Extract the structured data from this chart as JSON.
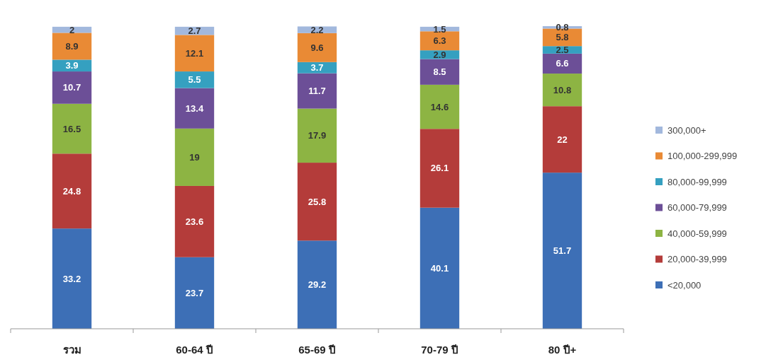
{
  "chart_data": {
    "type": "bar",
    "stacked": true,
    "data_labels": true,
    "legend": "right",
    "categories": [
      "รวม",
      "60-64 ปี",
      "65-69 ปี",
      "70-79 ปี",
      "80 ปี+"
    ],
    "series": [
      {
        "name": "<20,000",
        "color": "#3d6fb6",
        "values": [
          33.2,
          23.7,
          29.2,
          40.1,
          51.7
        ]
      },
      {
        "name": "20,000-39,999",
        "color": "#b43c3a",
        "values": [
          24.8,
          23.6,
          25.8,
          26.1,
          22
        ]
      },
      {
        "name": "40,000-59,999",
        "color": "#8db443",
        "values": [
          16.5,
          19,
          17.9,
          14.6,
          10.8
        ]
      },
      {
        "name": "60,000-79,999",
        "color": "#6c4f97",
        "values": [
          10.7,
          13.4,
          11.7,
          8.5,
          6.6
        ]
      },
      {
        "name": "80,000-99,999",
        "color": "#35a0c0",
        "values": [
          3.9,
          5.5,
          3.7,
          2.9,
          2.5
        ]
      },
      {
        "name": "100,000-299,999",
        "color": "#e98a35",
        "values": [
          8.9,
          12.1,
          9.6,
          6.3,
          5.8
        ]
      },
      {
        "name": "300,000+",
        "color": "#a2b8dd",
        "values": [
          2,
          2.7,
          2.2,
          1.5,
          0.8
        ]
      }
    ]
  }
}
